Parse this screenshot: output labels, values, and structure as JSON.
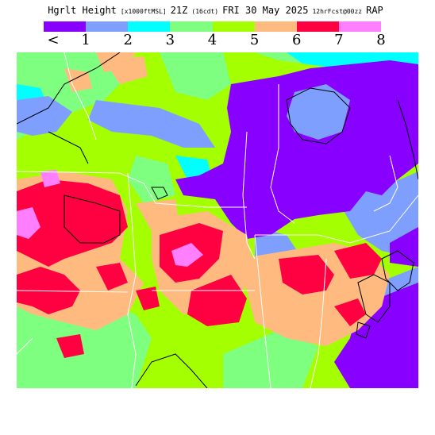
{
  "title": {
    "product": "Hgrlt Height",
    "units": "[x1000ftMSL]",
    "valid_time": "21Z",
    "local_time": "(16cdt)",
    "date": "FRI 30 May 2025",
    "forecast": "12hrFcst@00zz",
    "model": "RAP"
  },
  "legend": {
    "labels": [
      "<",
      "1",
      "2",
      "3",
      "4",
      "5",
      "6",
      "7",
      "8"
    ],
    "colors": [
      "#8800ff",
      "#7f9fff",
      "#00ffff",
      "#7fff7f",
      "#a4ff00",
      "#ffba7f",
      "#ff0040",
      "#ff7fff"
    ]
  },
  "map": {
    "land_fill_colors": {
      "lt1": "#8800ff",
      "1-2": "#7f9fff",
      "2-3": "#00ffff",
      "3-4": "#7fff7f",
      "4-5": "#a4ff00",
      "5-6": "#ffba7f",
      "6-7": "#ff0040",
      "7-8": "#ff7fff"
    },
    "border_color": "#ffffff",
    "terrain_contour_color": "#000000"
  }
}
